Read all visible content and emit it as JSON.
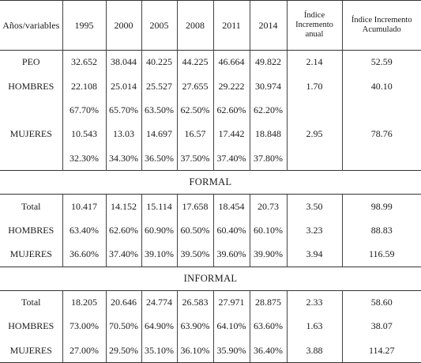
{
  "table": {
    "headers": [
      "Años/variables",
      "1995",
      "2000",
      "2005",
      "2008",
      "2011",
      "2014",
      "Índice Incremento anual",
      "Índice Incremento Acumulado"
    ],
    "blocks": [
      {
        "title": "",
        "rows": [
          [
            "PEO",
            "32.652",
            "38.044",
            "40.225",
            "44.225",
            "46.664",
            "49.822",
            "2.14",
            "52.59"
          ],
          [
            "HOMBRES",
            "22.108",
            "25.014",
            "25.527",
            "27.655",
            "29.222",
            "30.974",
            "1.70",
            "40.10"
          ],
          [
            "",
            "67.70%",
            "65.70%",
            "63.50%",
            "62.50%",
            "62.60%",
            "62.20%",
            "",
            ""
          ],
          [
            "MUJERES",
            "10.543",
            "13.03",
            "14.697",
            "16.57",
            "17.442",
            "18.848",
            "2.95",
            "78.76"
          ],
          [
            "",
            "32.30%",
            "34.30%",
            "36.50%",
            "37.50%",
            "37.40%",
            "37.80%",
            "",
            ""
          ]
        ]
      },
      {
        "title": "FORMAL",
        "rows": [
          [
            "Total",
            "10.417",
            "14.152",
            "15.114",
            "17.658",
            "18.454",
            "20.73",
            "3.50",
            "98.99"
          ],
          [
            "HOMBRES",
            "63.40%",
            "62.60%",
            "60.90%",
            "60.50%",
            "60.40%",
            "60.10%",
            "3.23",
            "88.83"
          ],
          [
            "MUJERES",
            "36.60%",
            "37.40%",
            "39.10%",
            "39.50%",
            "39.60%",
            "39.90%",
            "3.94",
            "116.59"
          ]
        ]
      },
      {
        "title": "INFORMAL",
        "rows": [
          [
            "Total",
            "18.205",
            "20.646",
            "24.774",
            "26.583",
            "27.971",
            "28.875",
            "2.33",
            "58.60"
          ],
          [
            "HOMBRES",
            "73.00%",
            "70.50%",
            "64.90%",
            "63.90%",
            "64.10%",
            "63.60%",
            "1.63",
            "38.07"
          ],
          [
            "MUJERES",
            "27.00%",
            "29.50%",
            "35.10%",
            "36.10%",
            "35.90%",
            "36.40%",
            "3.88",
            "114.27"
          ]
        ]
      }
    ]
  }
}
